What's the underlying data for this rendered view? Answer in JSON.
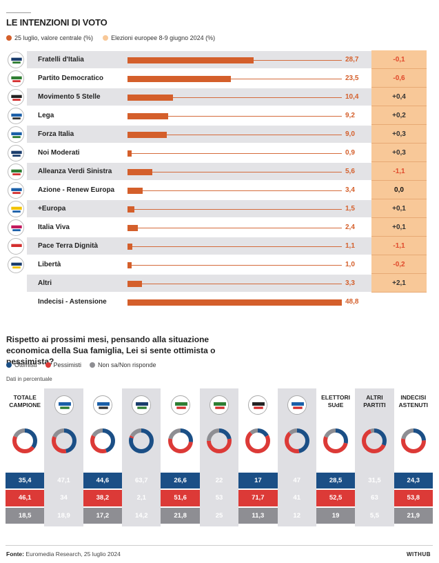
{
  "section1": {
    "title": "LE INTENZIONI DI VOTO",
    "legend": [
      {
        "label": "25 luglio, valore centrale (%)",
        "color": "#d45f2b"
      },
      {
        "label": "Elezioni europee 8-9 giugno 2024 (%)",
        "color": "#f8c898"
      }
    ]
  },
  "chart_data": [
    {
      "type": "bar",
      "title": "LE INTENZIONI DI VOTO",
      "xlim": [
        0,
        48.8
      ],
      "series": [
        {
          "name": "25 luglio, valore centrale (%)",
          "values": [
            28.7,
            23.5,
            10.4,
            9.2,
            9.0,
            0.9,
            5.6,
            3.4,
            1.5,
            2.4,
            1.1,
            1.0,
            3.3,
            48.8
          ]
        },
        {
          "name": "Elezioni europee 8-9 giugno 2024 (%)",
          "values": [
            -0.1,
            -0.6,
            0.4,
            0.2,
            0.3,
            0.3,
            -1.1,
            0.0,
            0.1,
            0.1,
            -1.1,
            -0.2,
            2.1,
            null
          ]
        }
      ],
      "categories": [
        "Fratelli d'Italia",
        "Partito Democratico",
        "Movimento 5 Stelle",
        "Lega",
        "Forza Italia",
        "Noi Moderati",
        "Alleanza Verdi Sinistra",
        "Azione - Renew Europa",
        "+Europa",
        "Italia Viva",
        "Pace Terra Dignità",
        "Libertà",
        "Altri",
        "Indecisi - Astensione"
      ],
      "value_labels": [
        "28,7",
        "23,5",
        "10,4",
        "9,2",
        "9,0",
        "0,9",
        "5,6",
        "3,4",
        "1,5",
        "2,4",
        "1,1",
        "1,0",
        "3,3",
        "48,8"
      ],
      "diff_labels": [
        "-0,1",
        "-0,6",
        "+0,4",
        "+0,2",
        "+0,3",
        "+0,3",
        "-1,1",
        "0,0",
        "+0,1",
        "+0,1",
        "-1,1",
        "-0,2",
        "+2,1",
        ""
      ]
    },
    {
      "type": "pie",
      "title": "Rispetto ai prossimi mesi, pensando alla situazione economica della Sua famiglia, Lei si sente ottimista o pessimista?",
      "categories": [
        "TOTALE CAMPIONE",
        "Forza Italia",
        "Lega",
        "Fratelli d'Italia",
        "Partito Democratico",
        "Alleanza Verdi Sinistra",
        "Movimento 5 Stelle",
        "Azione",
        "ELETTORI SUdE",
        "ALTRI PARTITI",
        "INDECISI ASTENUTI"
      ],
      "series": [
        {
          "name": "Ottimisti",
          "values": [
            35.4,
            47.1,
            44.6,
            63.7,
            26.6,
            22,
            17,
            47,
            28.5,
            31.5,
            24.3
          ],
          "color": "#1b4f86"
        },
        {
          "name": "Pessimisti",
          "values": [
            46.1,
            34,
            38.2,
            2.1,
            51.6,
            53,
            71.7,
            41,
            52.5,
            63,
            53.8
          ],
          "color": "#dc3a37"
        },
        {
          "name": "Non sa/Non risponde",
          "values": [
            18.5,
            18.9,
            17.2,
            14.2,
            21.8,
            25,
            11.3,
            12,
            19,
            5.5,
            21.9
          ],
          "color": "#8e8e93"
        }
      ],
      "labels_o": [
        "35,4",
        "47,1",
        "44,6",
        "63,7",
        "26,6",
        "22",
        "17",
        "47",
        "28,5",
        "31,5",
        "24,3"
      ],
      "labels_p": [
        "46,1",
        "34",
        "38,2",
        "2,1",
        "51,6",
        "53",
        "71,7",
        "41",
        "52,5",
        "63",
        "53,8"
      ],
      "labels_n": [
        "18,5",
        "18,9",
        "17,2",
        "14,2",
        "21,8",
        "25",
        "11,3",
        "12",
        "19",
        "5,5",
        "21,9"
      ]
    }
  ],
  "section2": {
    "title": "Rispetto ai prossimi mesi, pensando alla situazione economica della Sua famiglia, Lei si sente ottimista o pessimista?",
    "legend": [
      {
        "label": "Ottimisti",
        "color": "#1b4f86"
      },
      {
        "label": "Pessimisti",
        "color": "#dc3a37"
      },
      {
        "label": "Non sa/Non risponde",
        "color": "#8e8e93"
      }
    ],
    "note": "Dati in percentuale",
    "text_headers": [
      "TOTALE CAMPIONE",
      "",
      "",
      "",
      "",
      "",
      "",
      "",
      "ELETTORI SUdE",
      "ALTRI PARTITI",
      "INDECISI ASTENUTI"
    ],
    "logo_icons": [
      "",
      "forza-italia-logo-icon",
      "lega-logo-icon",
      "fratelli-ditalia-logo-icon",
      "pd-logo-icon",
      "avs-logo-icon",
      "m5s-logo-icon",
      "azione-logo-icon",
      "",
      "",
      ""
    ]
  },
  "footer": {
    "source_label": "Fonte:",
    "source": "Euromedia Research, 25 luglio 2024",
    "brand": "WITHUB"
  },
  "icons": [
    "fratelli-ditalia-logo-icon",
    "pd-logo-icon",
    "m5s-logo-icon",
    "lega-logo-icon",
    "forza-italia-logo-icon",
    "noi-moderati-logo-icon",
    "avs-logo-icon",
    "azione-logo-icon",
    "piu-europa-logo-icon",
    "italia-viva-logo-icon",
    "pace-terra-dignita-logo-icon",
    "liberta-logo-icon",
    "",
    ""
  ]
}
